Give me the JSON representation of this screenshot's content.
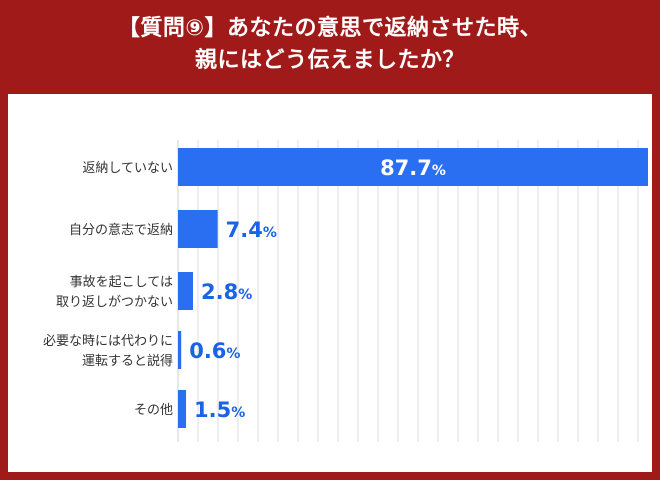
{
  "header": {
    "title_line1": "【質問⑨】あなたの意思で返納させた時、",
    "title_line2": "親にはどう伝えましたか？"
  },
  "colors": {
    "frame": "#a01a1a",
    "bar": "#2a6ef2",
    "value_text": "#1a63e6",
    "grid": "#dddddd"
  },
  "chart_data": {
    "type": "bar",
    "orientation": "horizontal",
    "categories": [
      "返納していない",
      "自分の意志で返納",
      "事故を起こしては\n取り返しがつかない",
      "必要な時には代わりに\n運転すると説得",
      "その他"
    ],
    "values": [
      87.7,
      7.4,
      2.8,
      0.6,
      1.5
    ],
    "value_labels": [
      "87.7",
      "7.4",
      "2.8",
      "0.6",
      "1.5"
    ],
    "unit": "%",
    "xlim": [
      0,
      87.7
    ],
    "grid": true
  }
}
